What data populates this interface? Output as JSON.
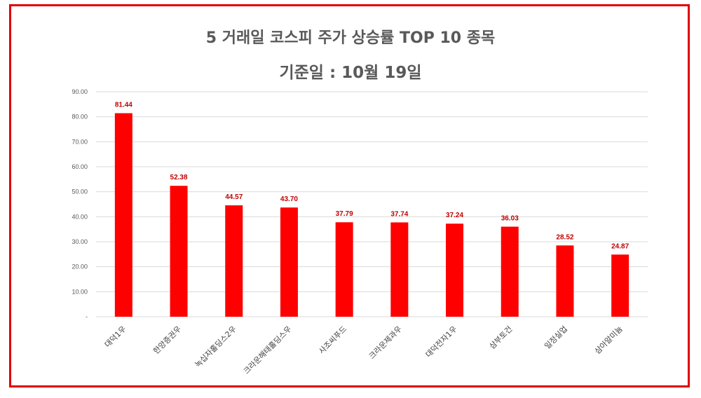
{
  "chart_data": {
    "type": "bar",
    "title": "5 거래일 코스피 주가 상승률 TOP 10 종목",
    "subtitle": "기준일 : 10월 19일",
    "categories": [
      "대덕1우",
      "한양증권우",
      "녹십자홀딩스2우",
      "크라운해태홀딩스우",
      "사조씨푸드",
      "크라운제과우",
      "대덕전자1우",
      "삼부토건",
      "일정실업",
      "삼아알미늄"
    ],
    "values": [
      81.44,
      52.38,
      44.57,
      43.7,
      37.79,
      37.74,
      37.24,
      36.03,
      28.52,
      24.87
    ],
    "value_labels": [
      "81.44",
      "52.38",
      "44.57",
      "43.70",
      "37.79",
      "37.74",
      "37.24",
      "36.03",
      "28.52",
      "24.87"
    ],
    "ylim": [
      0,
      90
    ],
    "yticks": [
      0,
      10,
      20,
      30,
      40,
      50,
      60,
      70,
      80,
      90
    ],
    "ytick_labels": [
      "-",
      "10.00",
      "20.00",
      "30.00",
      "40.00",
      "50.00",
      "60.00",
      "70.00",
      "80.00",
      "90.00"
    ],
    "xlabel": "",
    "ylabel": "",
    "grid": true,
    "legend": "none",
    "colors": {
      "bar": "#ff0000",
      "label": "#c00000",
      "border": "#e00000",
      "grid": "#d9d9d9",
      "title": "#595959"
    }
  }
}
